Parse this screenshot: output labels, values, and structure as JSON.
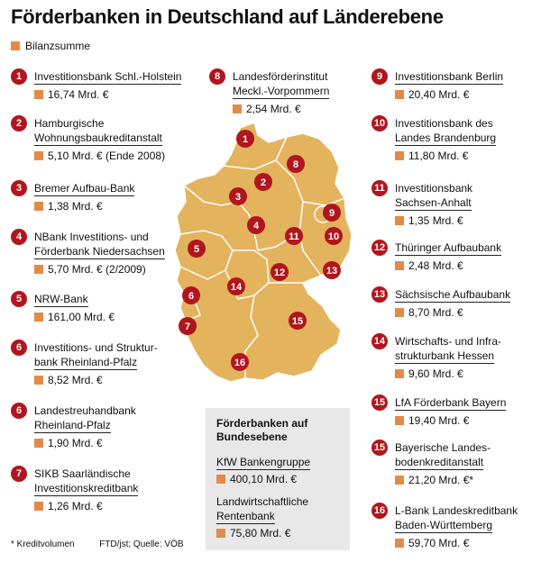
{
  "title": "Förderbanken in Deutschland auf Länderebene",
  "legend_label": "Bilanzsumme",
  "colors": {
    "accent": "#e28a48",
    "badge": "#b0161d",
    "map": "#e4b35d",
    "box": "#e8e8e8"
  },
  "chart_data": {
    "type": "table",
    "entries": [
      {
        "id": "1",
        "name": [
          "Investitionsbank Schl.-Holstein"
        ],
        "value": "16,74 Mrd. €"
      },
      {
        "id": "2",
        "name": [
          "Hamburgische",
          "Wohnungsbaukreditanstalt"
        ],
        "value": "5,10 Mrd. € (Ende 2008)"
      },
      {
        "id": "3",
        "name": [
          "Bremer Aufbau-Bank"
        ],
        "value": "1,38 Mrd. €"
      },
      {
        "id": "4",
        "name": [
          "NBank Investitions- und",
          "Förderbank Niedersachsen"
        ],
        "value": "5,70 Mrd. € (2/2009)"
      },
      {
        "id": "5",
        "name": [
          "NRW-Bank"
        ],
        "value": "161,00 Mrd. €"
      },
      {
        "id": "6",
        "name": [
          "Investitions- und Struktur-",
          "bank Rheinland-Pfalz"
        ],
        "value": "8,52 Mrd. €"
      },
      {
        "id": "6",
        "name": [
          "Landestreuhandbank",
          "Rheinland-Pfalz"
        ],
        "value": "1,90 Mrd. €"
      },
      {
        "id": "7",
        "name": [
          "SIKB Saarländische",
          "Investitionskreditbank"
        ],
        "value": "1,26 Mrd. €"
      },
      {
        "id": "8",
        "name": [
          "Landesförderinstitut",
          "Meckl.-Vorpommern"
        ],
        "value": "2,54 Mrd. €"
      },
      {
        "id": "9",
        "name": [
          "Investitionsbank Berlin"
        ],
        "value": "20,40 Mrd. €"
      },
      {
        "id": "10",
        "name": [
          "Investitionsbank des",
          "Landes Brandenburg"
        ],
        "value": "11,80 Mrd. €"
      },
      {
        "id": "11",
        "name": [
          "Investitionsbank",
          "Sachsen-Anhalt"
        ],
        "value": "1,35 Mrd. €"
      },
      {
        "id": "12",
        "name": [
          "Thüringer Aufbaubank"
        ],
        "value": "2,48 Mrd. €"
      },
      {
        "id": "13",
        "name": [
          "Sächsische Aufbaubank"
        ],
        "value": "8,70 Mrd. €"
      },
      {
        "id": "14",
        "name": [
          "Wirtschafts- und Infra-",
          "strukturbank Hessen"
        ],
        "value": "9,60 Mrd. €"
      },
      {
        "id": "15",
        "name": [
          "LfA Förderbank Bayern"
        ],
        "value": "19,40 Mrd. €"
      },
      {
        "id": "15",
        "name": [
          "Bayerische Landes-",
          "bodenkreditanstalt"
        ],
        "value": "21,20 Mrd. €*"
      },
      {
        "id": "16",
        "name": [
          "L-Bank Landeskreditbank",
          "Baden-Württemberg"
        ],
        "value": "59,70 Mrd. €"
      }
    ],
    "federal": {
      "heading": [
        "Förderbanken auf",
        "Bundesebene"
      ],
      "entries": [
        {
          "name": [
            "KfW Bankengruppe"
          ],
          "value": "400,10 Mrd. €"
        },
        {
          "name": [
            "Landwirtschaftliche",
            "Rentenbank"
          ],
          "value": "75,80 Mrd. €"
        }
      ]
    },
    "map_labels": [
      "1",
      "2",
      "3",
      "4",
      "5",
      "6",
      "7",
      "8",
      "9",
      "10",
      "11",
      "12",
      "13",
      "14",
      "15",
      "16"
    ]
  },
  "footnote": "* Kreditvolumen",
  "source": "FTD/jst; Quelle: VÖB"
}
